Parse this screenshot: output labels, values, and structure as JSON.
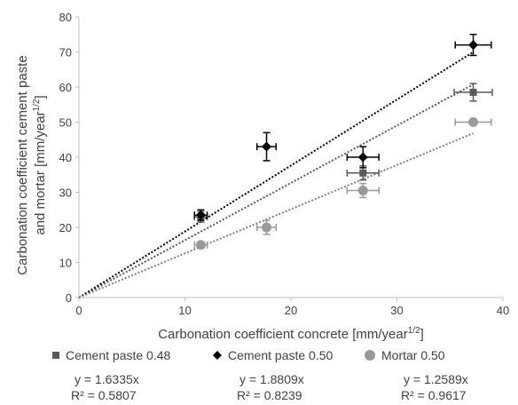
{
  "chart_data": {
    "type": "scatter",
    "xlabel": "Carbonation coefficient concrete [mm/year",
    "xlabel_sup": "1/2",
    "xlabel_end": "]",
    "ylabel_line1": "Carbonation coefficient cement paste",
    "ylabel_line2": "and mortar [mm/year",
    "ylabel_sup": "1/2",
    "ylabel_end": "]",
    "xlim": [
      0,
      40
    ],
    "ylim": [
      0,
      80
    ],
    "xticks": [
      0,
      10,
      20,
      30,
      40
    ],
    "yticks": [
      0,
      10,
      20,
      30,
      40,
      50,
      60,
      70,
      80
    ],
    "grid": false,
    "legend_position": "bottom",
    "series": [
      {
        "name": "Cement paste 0.48",
        "marker": "square",
        "color": "#595959",
        "points": [
          {
            "x": 11.5,
            "y": 23.0,
            "xerr": 0.6,
            "yerr": 1.5
          },
          {
            "x": 26.8,
            "y": 35.5,
            "xerr": 1.5,
            "yerr": 2.0
          },
          {
            "x": 37.2,
            "y": 58.5,
            "xerr": 1.8,
            "yerr": 2.5
          }
        ],
        "trendline": {
          "slope": 1.6335,
          "x_end": 37.2,
          "color": "#595959"
        },
        "equation": "y = 1.6335x",
        "r2": "R² = 0.5807"
      },
      {
        "name": "Cement paste 0.50",
        "marker": "diamond",
        "color": "#000000",
        "points": [
          {
            "x": 11.5,
            "y": 23.5,
            "xerr": 0.6,
            "yerr": 1.5
          },
          {
            "x": 17.7,
            "y": 43.0,
            "xerr": 0.9,
            "yerr": 4.0
          },
          {
            "x": 26.8,
            "y": 40.0,
            "xerr": 1.5,
            "yerr": 3.0
          },
          {
            "x": 37.2,
            "y": 72.0,
            "xerr": 1.7,
            "yerr": 3.0
          }
        ],
        "trendline": {
          "slope": 1.8809,
          "x_end": 37.2,
          "color": "#000000"
        },
        "equation": "y = 1.8809x",
        "r2": "R² = 0.8239"
      },
      {
        "name": "Mortar 0.50",
        "marker": "circle",
        "color": "#999999",
        "points": [
          {
            "x": 11.5,
            "y": 15.0,
            "xerr": 0.6,
            "yerr": 0.8
          },
          {
            "x": 17.7,
            "y": 20.0,
            "xerr": 0.9,
            "yerr": 2.0
          },
          {
            "x": 26.8,
            "y": 30.5,
            "xerr": 1.5,
            "yerr": 2.0
          },
          {
            "x": 37.2,
            "y": 50.0,
            "xerr": 1.7,
            "yerr": 0.5
          }
        ],
        "trendline": {
          "slope": 1.2589,
          "x_end": 37.2,
          "color": "#808080"
        },
        "equation": "y = 1.2589x",
        "r2": "R² = 0.9617"
      }
    ]
  }
}
